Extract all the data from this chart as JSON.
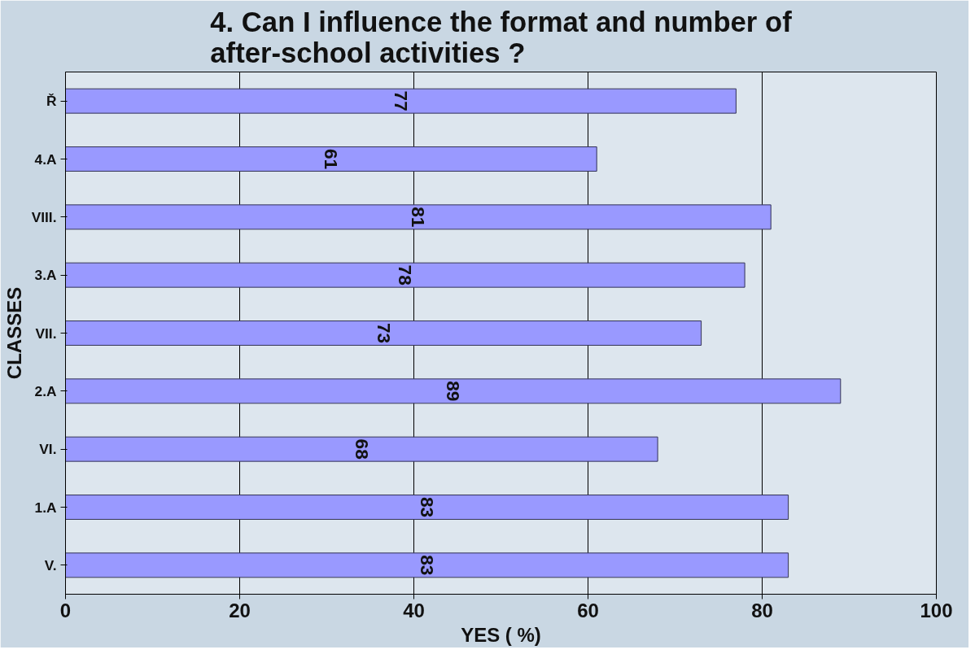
{
  "chart_data": {
    "type": "bar",
    "orientation": "horizontal",
    "title": "4. Can I influence the format and number of after-school activities ?",
    "xlabel": "YES ( %)",
    "ylabel": "CLASSES",
    "categories": [
      "Ř",
      "4.A",
      "VIII.",
      "3.A",
      "VII.",
      "2.A",
      "VI.",
      "1.A",
      "V."
    ],
    "values": [
      77,
      61,
      81,
      78,
      73,
      89,
      68,
      83,
      83
    ],
    "color": "#9999ff",
    "xlim": [
      0,
      100
    ],
    "xticks": [
      0,
      20,
      40,
      60,
      80,
      100
    ],
    "grid": "x",
    "data_labels": true
  }
}
